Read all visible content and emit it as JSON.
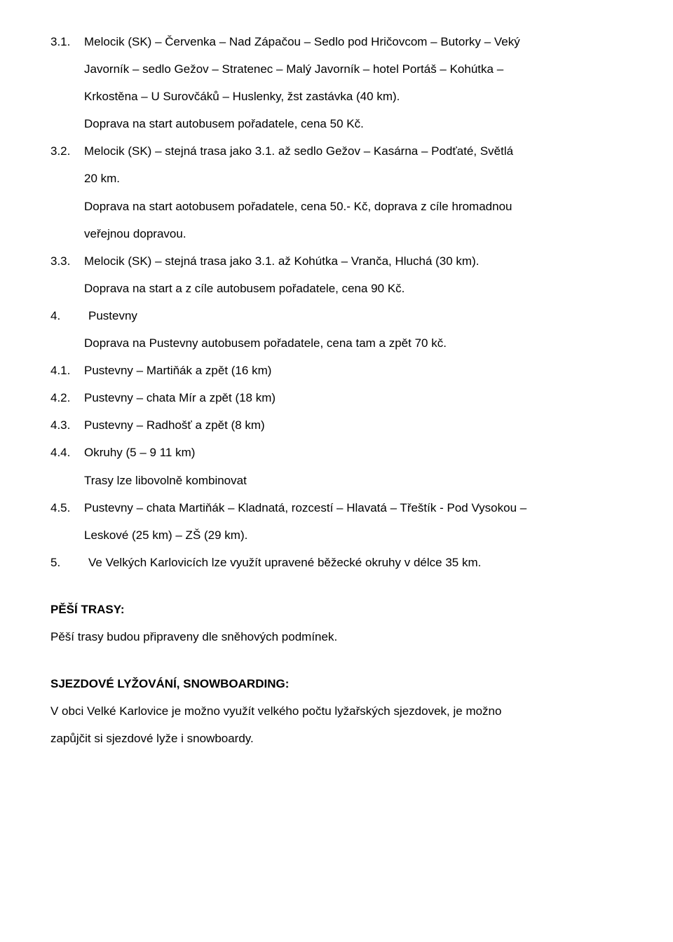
{
  "items": {
    "i31_num": "3.1.",
    "i31_txt_l1": "Melocik (SK) – Červenka – Nad Zápačou – Sedlo pod Hričovcom – Butorky – Veký",
    "i31_txt_l2": "Javorník – sedlo Gežov – Stratenec – Malý Javorník – hotel Portáš – Kohútka –",
    "i31_txt_l3": "Krkostěna – U Surovčáků – Huslenky, žst  zastávka (40 km).",
    "i31_txt_l4": "Doprava na start autobusem pořadatele, cena 50 Kč.",
    "i32_num": "3.2.",
    "i32_txt_l1": "Melocik (SK) – stejná trasa jako 3.1. až sedlo Gežov – Kasárna – Podťaté, Světlá",
    "i32_txt_l2": "20 km.",
    "i32_txt_l3": "Doprava na start aotobusem pořadatele, cena 50.- Kč, doprava z cíle hromadnou",
    "i32_txt_l4": "veřejnou dopravou.",
    "i33_num": "3.3.",
    "i33_txt_l1": "Melocik (SK) – stejná trasa jako 3.1. až Kohútka – Vranča, Hluchá (30 km).",
    "i33_txt_l2": "Doprava na start a z cíle autobusem pořadatele, cena 90 Kč.",
    "i4_num": "4.",
    "i4_txt_l1": "Pustevny",
    "i4_txt_l2": "Doprava na Pustevny autobusem pořadatele, cena tam a zpět 70 kč.",
    "i41_num": "4.1.",
    "i41_txt": "Pustevny – Martiňák a zpět (16 km)",
    "i42_num": "4.2.",
    "i42_txt": "Pustevny – chata Mír a zpět (18 km)",
    "i43_num": "4.3.",
    "i43_txt": "Pustevny – Radhošť a zpět (8 km)",
    "i44_num": "4.4.",
    "i44_txt_l1": "Okruhy (5 – 9 11 km)",
    "i44_txt_l2": "Trasy lze libovolně kombinovat",
    "i45_num": "4.5.",
    "i45_txt_l1": "Pustevny – chata Martiňák – Kladnatá, rozcestí – Hlavatá – Třeštík -  Pod Vysokou –",
    "i45_txt_l2": "Leskové (25 km) – ZŠ (29 km).",
    "i5_num": "5.",
    "i5_txt": "Ve  Velkých Karlovicích lze využít upravené běžecké okruhy v délce 35 km."
  },
  "sections": {
    "pesi_title": "PĚŠÍ TRASY:",
    "pesi_body": "Pěší trasy budou připraveny dle sněhových podmínek.",
    "sjezd_title": "SJEZDOVÉ LYŽOVÁNÍ, SNOWBOARDING:",
    "sjezd_body_l1": "V obci Velké Karlovice je možno využít velkého počtu lyžařských sjezdovek, je možno",
    "sjezd_body_l2": "zapůjčit si sjezdové lyže i snowboardy."
  }
}
